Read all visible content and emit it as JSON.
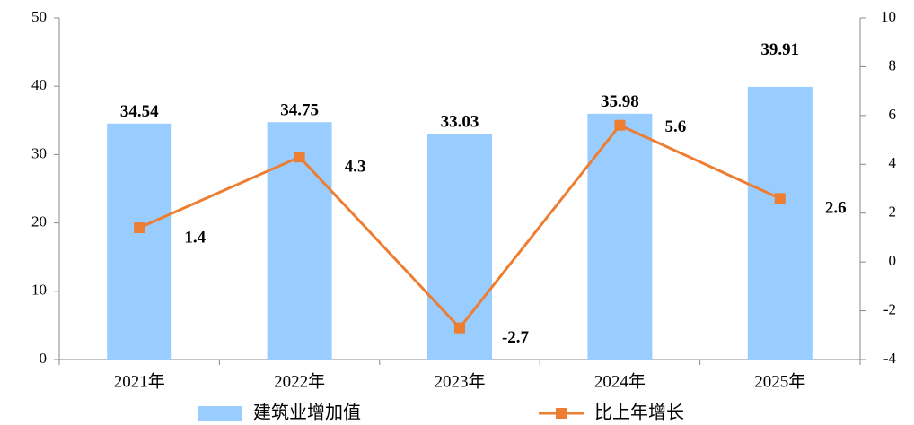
{
  "chart_data": {
    "type": "bar",
    "categories": [
      "2021年",
      "2022年",
      "2023年",
      "2024年",
      "2025年"
    ],
    "series": [
      {
        "name": "建筑业增加值",
        "type": "bar",
        "color": "#99ccff",
        "values": [
          34.54,
          34.75,
          33.03,
          35.98,
          39.91
        ]
      },
      {
        "name": "比上年增长",
        "type": "line",
        "axis": "y2",
        "color": "#ed7d31",
        "values": [
          1.4,
          4.3,
          -2.7,
          5.6,
          2.6
        ]
      }
    ],
    "ylim": [
      0,
      50
    ],
    "yticks": [
      0,
      10,
      20,
      30,
      40,
      50
    ],
    "y2lim": [
      -4,
      10
    ],
    "y2ticks": [
      -4,
      -2,
      0,
      2,
      4,
      6,
      8,
      10
    ],
    "legend": "bottom"
  }
}
